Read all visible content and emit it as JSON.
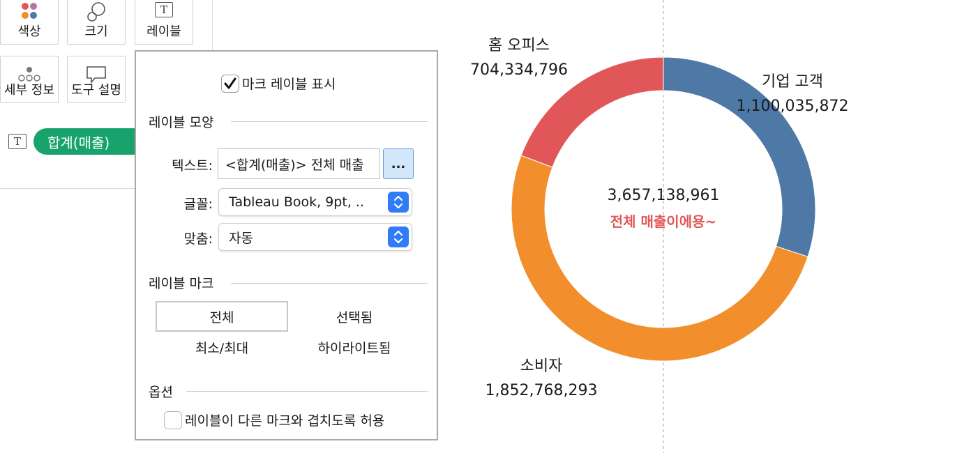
{
  "marks_card": {
    "buttons": [
      {
        "label": "색상",
        "icon": "color-dots-icon"
      },
      {
        "label": "크기",
        "icon": "size-circles-icon"
      },
      {
        "label": "레이블",
        "icon": "text-label-icon"
      },
      {
        "label": "세부 정보",
        "icon": "detail-dots-icon"
      },
      {
        "label": "도구 설명",
        "icon": "tooltip-speech-icon"
      }
    ],
    "pill": {
      "icon": "text-label-icon",
      "label": "합계(매출)",
      "color": "#18a36c"
    }
  },
  "label_popup": {
    "show_labels": {
      "label": "마크 레이블 표시",
      "checked": true
    },
    "appearance": {
      "title": "레이블 모양",
      "text_label": "텍스트:",
      "text_value": "<합계(매출)> 전체 매출",
      "more_button": "...",
      "font_label": "글꼴:",
      "font_value": "Tableau Book, 9pt, ..",
      "align_label": "맞춤:",
      "align_value": "자동"
    },
    "marks_to_label": {
      "title": "레이블 마크",
      "options": [
        "전체",
        "선택됨",
        "최소/최대",
        "하이라이트됨"
      ],
      "selected": "전체"
    },
    "options": {
      "title": "옵션",
      "allow_overlap": {
        "label": "레이블이 다른 마크와 겹치도록 허용",
        "checked": false
      }
    }
  },
  "chart_data": {
    "type": "pie",
    "variant": "donut",
    "categories": [
      "기업 고객",
      "소비자",
      "홈 오피스"
    ],
    "values": [
      1100035872,
      1852768293,
      704334796
    ],
    "value_labels": [
      "1,100,035,872",
      "1,852,768,293",
      "704,334,796"
    ],
    "colors": [
      "#4e79a7",
      "#f28e2b",
      "#e15759"
    ],
    "center_total": "3,657,138,961",
    "center_note": "전체 매출이에용~",
    "center_note_color": "#e15759",
    "reference_line": "vertical dashed line through center"
  }
}
